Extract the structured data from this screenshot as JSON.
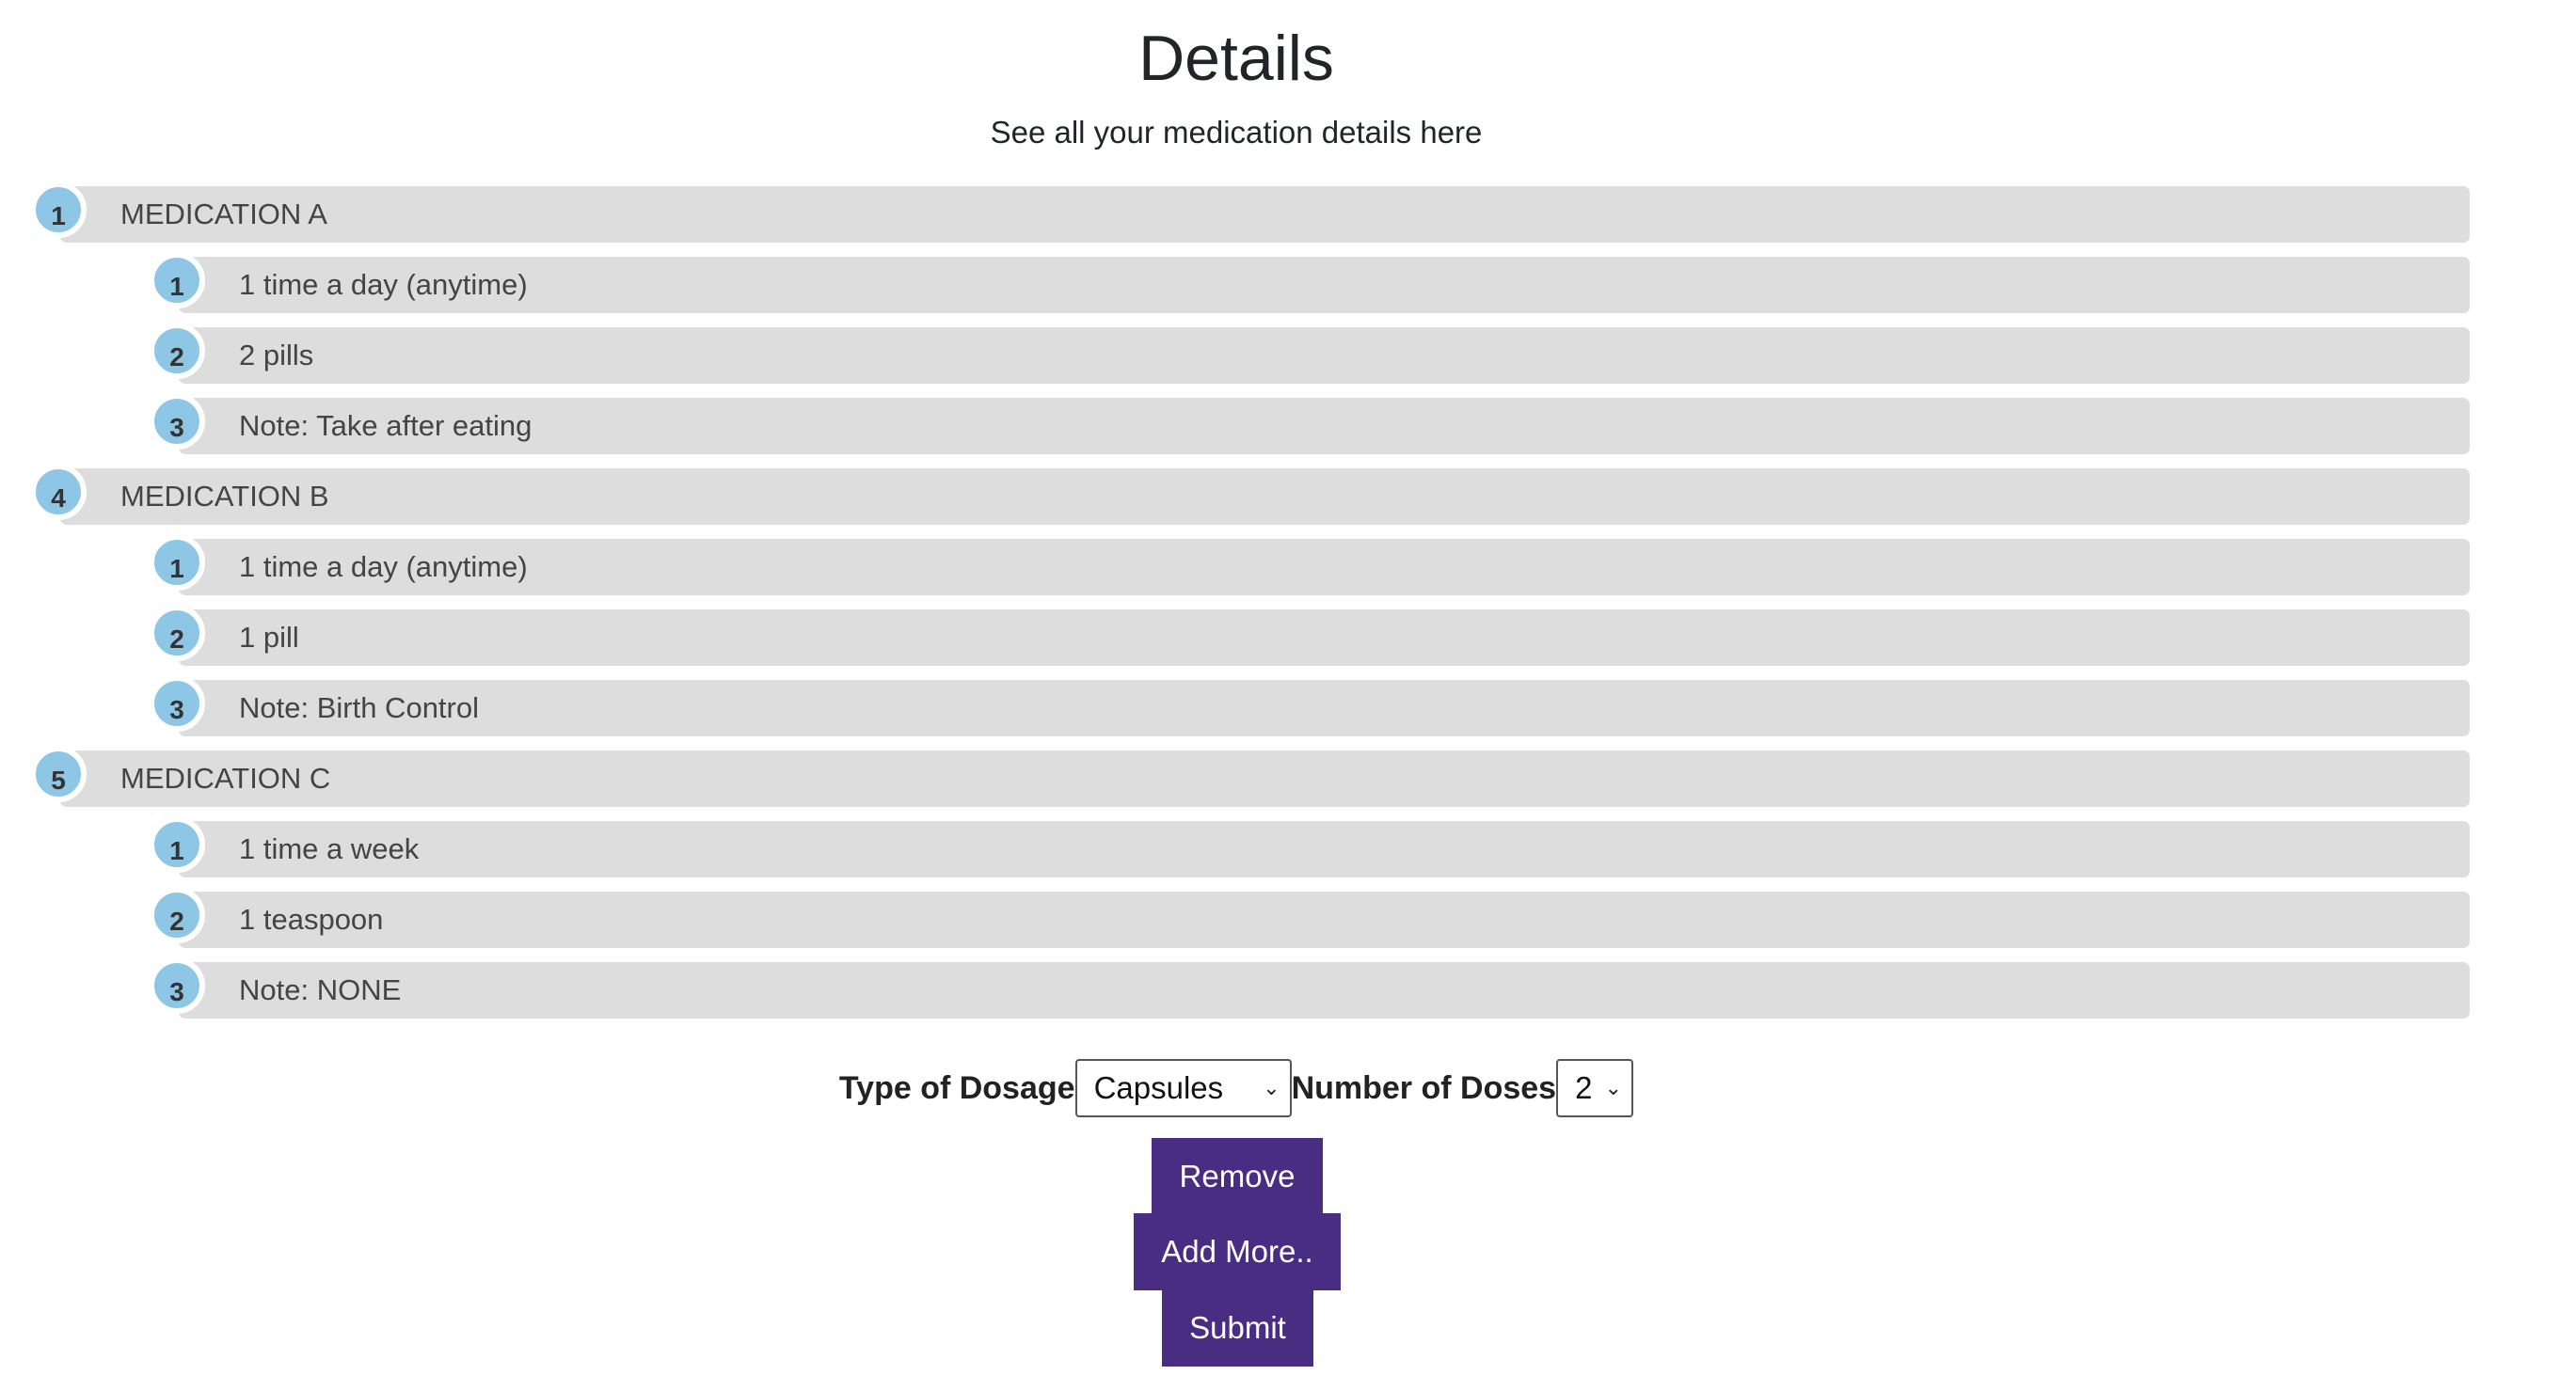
{
  "header": {
    "title": "Details",
    "subtitle": "See all your medication details here"
  },
  "medications": [
    {
      "number": "1",
      "name": "MEDICATION A",
      "details": [
        {
          "number": "1",
          "text": "1 time a day (anytime)"
        },
        {
          "number": "2",
          "text": "2 pills"
        },
        {
          "number": "3",
          "text": "Note: Take after eating"
        }
      ]
    },
    {
      "number": "4",
      "name": "MEDICATION B",
      "details": [
        {
          "number": "1",
          "text": "1 time a day (anytime)"
        },
        {
          "number": "2",
          "text": "1 pill"
        },
        {
          "number": "3",
          "text": "Note: Birth Control"
        }
      ]
    },
    {
      "number": "5",
      "name": "MEDICATION C",
      "details": [
        {
          "number": "1",
          "text": "1 time a week"
        },
        {
          "number": "2",
          "text": "1 teaspoon"
        },
        {
          "number": "3",
          "text": "Note: NONE"
        }
      ]
    }
  ],
  "form": {
    "dosage_label": "Type of Dosage",
    "dosage_value": "Capsules",
    "doses_label": "Number of Doses",
    "doses_value": "2",
    "chevron_glyph": "⌄"
  },
  "buttons": {
    "remove": "Remove",
    "add_more": "Add More..",
    "submit": "Submit"
  },
  "colors": {
    "bar": "#dddddd",
    "badge": "#8ec7e6",
    "button": "#482d82"
  }
}
